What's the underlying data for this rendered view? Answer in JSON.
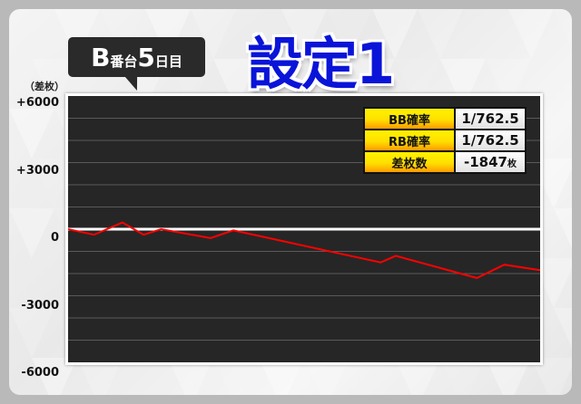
{
  "title": "設定1",
  "machine_label": {
    "unit_prefix": "B",
    "unit_word": "番台",
    "day": "5",
    "day_word": "日目"
  },
  "stats": [
    {
      "label": "BB確率",
      "value": "1/762.5",
      "unit": ""
    },
    {
      "label": "RB確率",
      "value": "1/762.5",
      "unit": ""
    },
    {
      "label": "差枚数",
      "value": "-1847",
      "unit": "枚"
    }
  ],
  "colors": {
    "title": "#0a14d8",
    "line": "#ff0000",
    "plot_bg": "#262626",
    "stat_label_bg": "#ffe000"
  },
  "chart_data": {
    "type": "line",
    "ylabel": "（差枚）",
    "ylim": [
      -6000,
      6000
    ],
    "yticks": [
      "+6000",
      "+3000",
      "0",
      "-3000",
      "-6000"
    ],
    "ytick_values": [
      6000,
      3000,
      0,
      -3000,
      -6000
    ],
    "grid": true,
    "grid_step": 1000,
    "xlim": [
      0,
      100
    ],
    "series": [
      {
        "x": [
          0,
          5.5,
          11.5,
          16,
          19.7,
          30.2,
          35,
          66.2,
          69.4,
          86.6,
          92.4,
          100
        ],
        "y": [
          0,
          -250,
          300,
          -250,
          0,
          -400,
          -50,
          -1500,
          -1200,
          -2200,
          -1600,
          -1847
        ]
      }
    ]
  }
}
